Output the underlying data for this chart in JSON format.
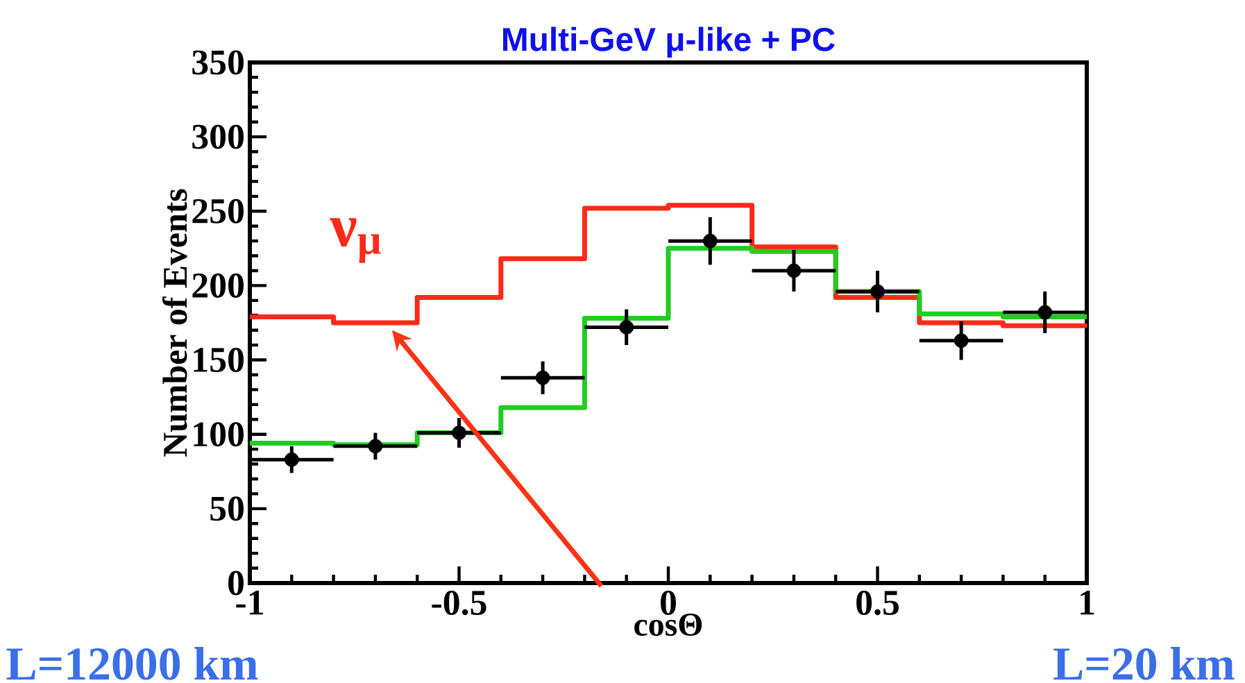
{
  "chart_data": {
    "type": "histogram",
    "title": "Multi-GeV μ-like + PC",
    "xlabel": "cosΘ",
    "ylabel": "Number of Events",
    "bins": [
      -1,
      -0.8,
      -0.6,
      -0.4,
      -0.2,
      0,
      0.2,
      0.4,
      0.6,
      0.8,
      1
    ],
    "series": [
      {
        "name": "ν$_{μ}$",
        "color": "#ff2a1a",
        "values": [
          179,
          175,
          192,
          218,
          252,
          254,
          226,
          192,
          175,
          173
        ]
      },
      {
        "color": "#22cc22",
        "values": [
          94,
          93,
          101,
          118,
          178,
          225,
          223,
          196,
          181,
          179
        ]
      },
      {
        "type": "scatter",
        "color": "#000000",
        "x": [
          -0.9,
          -0.7,
          -0.5,
          -0.3,
          -0.1,
          0.1,
          0.3,
          0.5,
          0.7,
          0.9
        ],
        "values": [
          83,
          92,
          101,
          138,
          172,
          230,
          210,
          196,
          163,
          182
        ],
        "errors": [
          9,
          9,
          10,
          11,
          12,
          16,
          14,
          14,
          13,
          14
        ],
        "xerrors": [
          0.1,
          0.1,
          0.1,
          0.1,
          0.1,
          0.1,
          0.1,
          0.1,
          0.1,
          0.1
        ]
      }
    ],
    "xlim": [
      -1,
      1
    ],
    "xticks": [
      -1,
      -0.5,
      0,
      0.5,
      1
    ],
    "ylim": [
      0,
      350
    ],
    "yticks": [
      0,
      50,
      100,
      150,
      200,
      250,
      300,
      350
    ],
    "grid": false,
    "annotations": [
      "L=12000 km",
      "L=20 km"
    ]
  }
}
